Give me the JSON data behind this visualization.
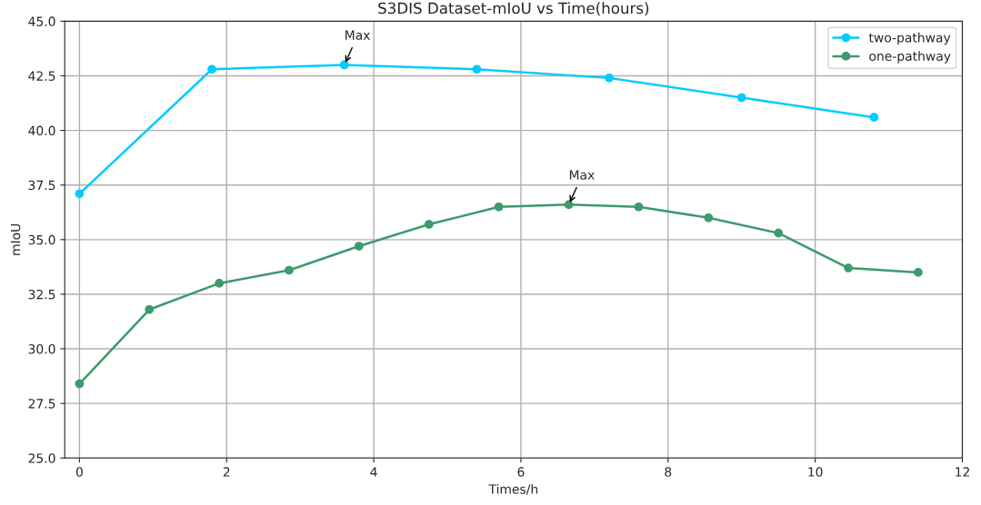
{
  "chart_data": {
    "type": "line",
    "title": "S3DIS Dataset-mIoU vs Time(hours)",
    "xlabel": "Times/h",
    "ylabel": "mIoU",
    "series": [
      {
        "name": "two-pathway",
        "color": "#00ccff",
        "x": [
          0,
          1.8,
          3.6,
          5.4,
          7.2,
          9.0,
          10.8
        ],
        "values": [
          37.1,
          42.8,
          43.0,
          42.8,
          42.4,
          41.5,
          40.6
        ]
      },
      {
        "name": "one-pathway",
        "color": "#3c9a6c",
        "x": [
          0,
          0.95,
          1.9,
          2.85,
          3.8,
          4.75,
          5.7,
          6.65,
          7.6,
          8.55,
          9.5,
          10.45,
          11.4
        ],
        "values": [
          28.4,
          31.8,
          33.0,
          33.6,
          34.7,
          35.7,
          36.5,
          36.6,
          36.5,
          36.0,
          35.3,
          33.7,
          33.5
        ]
      }
    ],
    "annotations": [
      {
        "text": "Max",
        "x": 3.6,
        "y": 43.0
      },
      {
        "text": "Max",
        "x": 6.65,
        "y": 36.6
      }
    ],
    "xlim": [
      -0.2,
      12
    ],
    "xticks": [
      0,
      2,
      4,
      6,
      8,
      10,
      12
    ],
    "ylim": [
      25.0,
      45.0
    ],
    "yticks": [
      {
        "value": 25,
        "label": "25.0"
      },
      {
        "value": 27.5,
        "label": "27.5"
      },
      {
        "value": 30,
        "label": "30.0"
      },
      {
        "value": 32.5,
        "label": "32.5"
      },
      {
        "value": 35,
        "label": "35.0"
      },
      {
        "value": 37.5,
        "label": "37.5"
      },
      {
        "value": 40,
        "label": "40.0"
      },
      {
        "value": 42.5,
        "label": "42.5"
      },
      {
        "value": 45,
        "label": "45.0"
      }
    ],
    "grid": true,
    "legend": "top right",
    "marker": "circle",
    "line_style": "solid"
  }
}
